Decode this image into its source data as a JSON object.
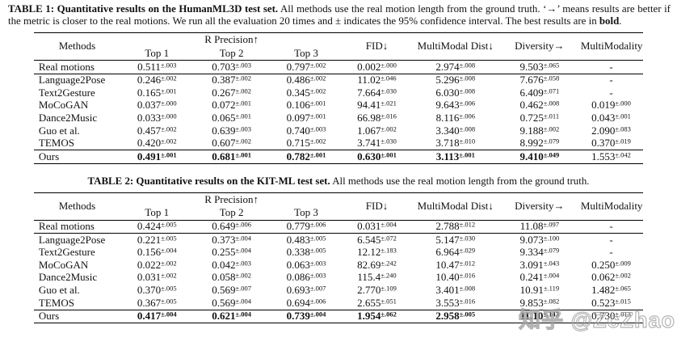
{
  "watermark": {
    "text": "知乎 @ZcZhao"
  },
  "tables": [
    {
      "caption": {
        "lead": "TABLE 1: Quantitative results on the HumanML3D test set.",
        "body": " All methods use the real motion length from the ground truth. ‘→’ means results are better if the metric is closer to the real motions. We run all the evaluation 20 times and ± indicates the 95% confidence interval. The best results are in ",
        "bold_word": "bold",
        "tail": "."
      },
      "header": {
        "methods": "Methods",
        "group": "R Precision↑",
        "subcols": [
          "Top 1",
          "Top 2",
          "Top 3"
        ],
        "cols": [
          "FID↓",
          "MultiModal Dist↓",
          "Diversity→",
          "MultiModality"
        ]
      },
      "rows": [
        {
          "method": "Real motions",
          "rule": "real",
          "cells": [
            {
              "v": "0.511",
              "ci": "±.003"
            },
            {
              "v": "0.703",
              "ci": "±.003"
            },
            {
              "v": "0.797",
              "ci": "±.002"
            },
            {
              "v": "0.002",
              "ci": "±.000"
            },
            {
              "v": "2.974",
              "ci": "±.008"
            },
            {
              "v": "9.503",
              "ci": "±.065"
            },
            {
              "v": "-"
            }
          ]
        },
        {
          "method": "Language2Pose",
          "cells": [
            {
              "v": "0.246",
              "ci": "±.002"
            },
            {
              "v": "0.387",
              "ci": "±.002"
            },
            {
              "v": "0.486",
              "ci": "±.002"
            },
            {
              "v": "11.02",
              "ci": "±.046"
            },
            {
              "v": "5.296",
              "ci": "±.008"
            },
            {
              "v": "7.676",
              "ci": "±.058"
            },
            {
              "v": "-"
            }
          ]
        },
        {
          "method": "Text2Gesture",
          "cells": [
            {
              "v": "0.165",
              "ci": "±.001"
            },
            {
              "v": "0.267",
              "ci": "±.002"
            },
            {
              "v": "0.345",
              "ci": "±.002"
            },
            {
              "v": "7.664",
              "ci": "±.030"
            },
            {
              "v": "6.030",
              "ci": "±.008"
            },
            {
              "v": "6.409",
              "ci": "±.071"
            },
            {
              "v": "-"
            }
          ]
        },
        {
          "method": "MoCoGAN",
          "cells": [
            {
              "v": "0.037",
              "ci": "±.000"
            },
            {
              "v": "0.072",
              "ci": "±.001"
            },
            {
              "v": "0.106",
              "ci": "±.001"
            },
            {
              "v": "94.41",
              "ci": "±.021"
            },
            {
              "v": "9.643",
              "ci": "±.006"
            },
            {
              "v": "0.462",
              "ci": "±.008"
            },
            {
              "v": "0.019",
              "ci": "±.000"
            }
          ]
        },
        {
          "method": "Dance2Music",
          "cells": [
            {
              "v": "0.033",
              "ci": "±.000"
            },
            {
              "v": "0.065",
              "ci": "±.001"
            },
            {
              "v": "0.097",
              "ci": "±.001"
            },
            {
              "v": "66.98",
              "ci": "±.016"
            },
            {
              "v": "8.116",
              "ci": "±.006"
            },
            {
              "v": "0.725",
              "ci": "±.011"
            },
            {
              "v": "0.043",
              "ci": "±.001"
            }
          ]
        },
        {
          "method": "Guo et al.",
          "cells": [
            {
              "v": "0.457",
              "ci": "±.002"
            },
            {
              "v": "0.639",
              "ci": "±.003"
            },
            {
              "v": "0.740",
              "ci": "±.003"
            },
            {
              "v": "1.067",
              "ci": "±.002"
            },
            {
              "v": "3.340",
              "ci": "±.008"
            },
            {
              "v": "9.188",
              "ci": "±.002"
            },
            {
              "v": "2.090",
              "ci": "±.083"
            }
          ]
        },
        {
          "method": "TEMOS",
          "cells": [
            {
              "v": "0.420",
              "ci": "±.002"
            },
            {
              "v": "0.607",
              "ci": "±.002"
            },
            {
              "v": "0.715",
              "ci": "±.002"
            },
            {
              "v": "3.741",
              "ci": "±.030"
            },
            {
              "v": "3.718",
              "ci": "±.010"
            },
            {
              "v": "8.992",
              "ci": "±.079"
            },
            {
              "v": "0.370",
              "ci": "±.019"
            }
          ]
        },
        {
          "method": "Ours",
          "rule": "ours",
          "cells": [
            {
              "v": "0.491",
              "ci": "±.001",
              "b": true
            },
            {
              "v": "0.681",
              "ci": "±.001",
              "b": true
            },
            {
              "v": "0.782",
              "ci": "±.001",
              "b": true
            },
            {
              "v": "0.630",
              "ci": "±.001",
              "b": true
            },
            {
              "v": "3.113",
              "ci": "±.001",
              "b": true
            },
            {
              "v": "9.410",
              "ci": "±.049",
              "b": true
            },
            {
              "v": "1.553",
              "ci": "±.042"
            }
          ]
        }
      ]
    },
    {
      "caption": {
        "lead": "TABLE 2: Quantitative results on the KIT-ML test set.",
        "body": " All methods use the real motion length from the ground truth.",
        "bold_word": "",
        "tail": ""
      },
      "header": {
        "methods": "Methods",
        "group": "R Precision↑",
        "subcols": [
          "Top 1",
          "Top 2",
          "Top 3"
        ],
        "cols": [
          "FID↓",
          "MultiModal Dist↓",
          "Diversity→",
          "MultiModality"
        ]
      },
      "rows": [
        {
          "method": "Real motions",
          "rule": "real",
          "cells": [
            {
              "v": "0.424",
              "ci": "±.005"
            },
            {
              "v": "0.649",
              "ci": "±.006"
            },
            {
              "v": "0.779",
              "ci": "±.006"
            },
            {
              "v": "0.031",
              "ci": "±.004"
            },
            {
              "v": "2.788",
              "ci": "±.012"
            },
            {
              "v": "11.08",
              "ci": "±.097"
            },
            {
              "v": "-"
            }
          ]
        },
        {
          "method": "Language2Pose",
          "cells": [
            {
              "v": "0.221",
              "ci": "±.005"
            },
            {
              "v": "0.373",
              "ci": "±.004"
            },
            {
              "v": "0.483",
              "ci": "±.005"
            },
            {
              "v": "6.545",
              "ci": "±.072"
            },
            {
              "v": "5.147",
              "ci": "±.030"
            },
            {
              "v": "9.073",
              "ci": "±.100"
            },
            {
              "v": "-"
            }
          ]
        },
        {
          "method": "Text2Gesture",
          "cells": [
            {
              "v": "0.156",
              "ci": "±.004"
            },
            {
              "v": "0.255",
              "ci": "±.004"
            },
            {
              "v": "0.338",
              "ci": "±.005"
            },
            {
              "v": "12.12",
              "ci": "±.183"
            },
            {
              "v": "6.964",
              "ci": "±.029"
            },
            {
              "v": "9.334",
              "ci": "±.079"
            },
            {
              "v": "-"
            }
          ]
        },
        {
          "method": "MoCoGAN",
          "cells": [
            {
              "v": "0.022",
              "ci": "±.002"
            },
            {
              "v": "0.042",
              "ci": "±.003"
            },
            {
              "v": "0.063",
              "ci": "±.003"
            },
            {
              "v": "82.69",
              "ci": "±.242"
            },
            {
              "v": "10.47",
              "ci": "±.012"
            },
            {
              "v": "3.091",
              "ci": "±.043"
            },
            {
              "v": "0.250",
              "ci": "±.009"
            }
          ]
        },
        {
          "method": "Dance2Music",
          "cells": [
            {
              "v": "0.031",
              "ci": "±.002"
            },
            {
              "v": "0.058",
              "ci": "±.002"
            },
            {
              "v": "0.086",
              "ci": "±.003"
            },
            {
              "v": "115.4",
              "ci": "±.240"
            },
            {
              "v": "10.40",
              "ci": "±.016"
            },
            {
              "v": "0.241",
              "ci": "±.004"
            },
            {
              "v": "0.062",
              "ci": "±.002"
            }
          ]
        },
        {
          "method": "Guo et al.",
          "cells": [
            {
              "v": "0.370",
              "ci": "±.005"
            },
            {
              "v": "0.569",
              "ci": "±.007"
            },
            {
              "v": "0.693",
              "ci": "±.007"
            },
            {
              "v": "2.770",
              "ci": "±.109"
            },
            {
              "v": "3.401",
              "ci": "±.008"
            },
            {
              "v": "10.91",
              "ci": "±.119"
            },
            {
              "v": "1.482",
              "ci": "±.065"
            }
          ]
        },
        {
          "method": "TEMOS",
          "cells": [
            {
              "v": "0.367",
              "ci": "±.005"
            },
            {
              "v": "0.569",
              "ci": "±.004"
            },
            {
              "v": "0.694",
              "ci": "±.006"
            },
            {
              "v": "2.655",
              "ci": "±.051"
            },
            {
              "v": "3.553",
              "ci": "±.016"
            },
            {
              "v": "9.853",
              "ci": "±.082"
            },
            {
              "v": "0.523",
              "ci": "±.015"
            }
          ]
        },
        {
          "method": "Ours",
          "rule": "ours",
          "cells": [
            {
              "v": "0.417",
              "ci": "±.004",
              "b": true
            },
            {
              "v": "0.621",
              "ci": "±.004",
              "b": true
            },
            {
              "v": "0.739",
              "ci": "±.004",
              "b": true
            },
            {
              "v": "1.954",
              "ci": "±.062",
              "b": true
            },
            {
              "v": "2.958",
              "ci": "±.005",
              "b": true
            },
            {
              "v": "11.10",
              "ci": "±.143",
              "b": true
            },
            {
              "v": "0.730",
              "ci": "±.013"
            }
          ]
        }
      ]
    }
  ]
}
